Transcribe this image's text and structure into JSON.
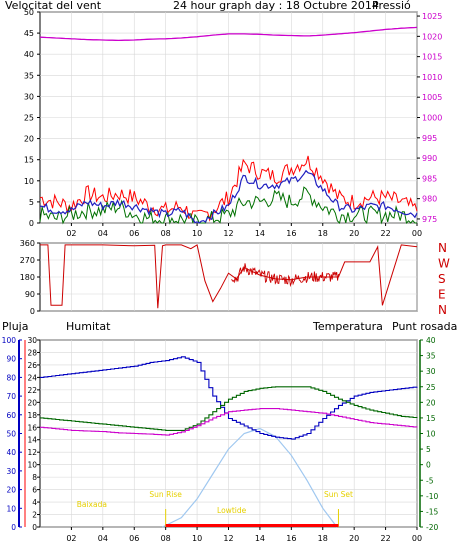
{
  "colors": {
    "wind": "#d40000",
    "wind_avg": "#2020c0",
    "wind_gust_fill": "#ff0000",
    "wind_low": "#007000",
    "pressure": "#cc00cc",
    "direction": "#cc0000",
    "humidity": "#0000c0",
    "temperature": "#006600",
    "dewpoint": "#cc00cc",
    "solar": "#a0c8f0",
    "rain": "#ff0000",
    "labels_yellow": "#e6d000",
    "axis": "#000000",
    "grid": "#d8d8d8"
  },
  "chart_data": [
    {
      "id": "wind-pressure",
      "type": "line",
      "title": "24 hour graph day : 18 Octubre 2014",
      "left_label": "Velocitat del vent",
      "right_label": "Pressió",
      "x_ticks": [
        "02",
        "04",
        "06",
        "08",
        "10",
        "12",
        "14",
        "16",
        "18",
        "20",
        "22",
        "00"
      ],
      "y_left_ticks": [
        "0",
        "5",
        "10",
        "15",
        "20",
        "25",
        "30",
        "35",
        "40",
        "45",
        "50"
      ],
      "y_left_range": [
        0,
        50
      ],
      "y_right_ticks": [
        "975",
        "980",
        "985",
        "990",
        "995",
        "1000",
        "1005",
        "1010",
        "1015",
        "1020",
        "1025"
      ],
      "y_right_range": [
        974,
        1026
      ],
      "x_hours": [
        0,
        1,
        2,
        3,
        4,
        5,
        6,
        7,
        8,
        9,
        10,
        11,
        12,
        13,
        14,
        15,
        16,
        17,
        18,
        19,
        20,
        21,
        22,
        23,
        24
      ],
      "series": [
        {
          "name": "gust",
          "values": [
            6,
            5,
            4,
            7,
            6,
            7,
            6,
            4,
            3,
            4,
            1,
            3,
            6,
            14,
            12,
            11,
            13,
            15,
            11,
            6,
            5,
            6,
            6,
            5,
            3
          ]
        },
        {
          "name": "average",
          "values": [
            4,
            3,
            3,
            5,
            4,
            5,
            4,
            3,
            2,
            3,
            0,
            2,
            4,
            11,
            9,
            9,
            10,
            12,
            8,
            4,
            3,
            4,
            4,
            3,
            2
          ]
        },
        {
          "name": "low",
          "values": [
            2,
            1,
            2,
            3,
            3,
            4,
            2,
            1,
            1,
            1,
            0,
            1,
            2,
            5,
            5,
            6,
            5,
            7,
            4,
            2,
            2,
            2,
            2,
            2,
            1
          ]
        },
        {
          "name": "pressure",
          "values": [
            1019.8,
            1019.6,
            1019.4,
            1019.2,
            1019.1,
            1019.0,
            1019.1,
            1019.3,
            1019.4,
            1019.6,
            1019.9,
            1020.3,
            1020.6,
            1020.6,
            1020.5,
            1020.3,
            1020.2,
            1020.1,
            1020.3,
            1020.6,
            1020.9,
            1021.3,
            1021.7,
            1022.0,
            1022.2
          ]
        }
      ]
    },
    {
      "id": "wind-direction",
      "type": "line",
      "y_left_ticks": [
        "0",
        "90",
        "180",
        "270",
        "360"
      ],
      "y_left_range": [
        0,
        360
      ],
      "y_right_ticks": [
        "N",
        "W",
        "S",
        "E",
        "N"
      ],
      "x_ticks": [
        "02",
        "04",
        "06",
        "08",
        "10",
        "12",
        "14",
        "16",
        "18",
        "20",
        "22",
        "00"
      ],
      "x_hours": [
        0,
        0.5,
        0.7,
        1.4,
        1.6,
        2,
        4,
        6,
        7.3,
        7.5,
        7.8,
        8,
        9,
        9.6,
        10,
        10.5,
        11,
        11.5,
        12,
        12.5,
        13,
        14,
        15,
        16,
        17,
        18,
        19,
        19.4,
        20,
        21,
        21.5,
        21.8,
        23,
        24
      ],
      "series": [
        {
          "name": "direction",
          "values": [
            350,
            350,
            30,
            30,
            350,
            350,
            350,
            345,
            348,
            15,
            345,
            350,
            350,
            330,
            350,
            160,
            50,
            120,
            200,
            170,
            230,
            190,
            170,
            165,
            180,
            180,
            180,
            260,
            260,
            260,
            340,
            30,
            350,
            340
          ]
        }
      ]
    },
    {
      "id": "temperature-humidity",
      "type": "line",
      "labels": {
        "rain": "Pluja",
        "humidity": "Humitat",
        "temperature": "Temperatura",
        "dewpoint": "Punt rosada"
      },
      "x_ticks": [
        "02",
        "04",
        "06",
        "08",
        "10",
        "12",
        "14",
        "16",
        "18",
        "20",
        "22",
        "00"
      ],
      "y_humidity_ticks": [
        "0",
        "10",
        "20",
        "30",
        "40",
        "50",
        "60",
        "70",
        "80",
        "90",
        "100"
      ],
      "y_humidity_range": [
        0,
        100
      ],
      "y_rain_ticks": [
        "0",
        "2",
        "4",
        "6",
        "8",
        "10",
        "12",
        "14",
        "16",
        "18",
        "20",
        "22",
        "24",
        "26",
        "28",
        "30"
      ],
      "y_rain_range": [
        0,
        30
      ],
      "y_temp_ticks": [
        "-20",
        "-15",
        "-10",
        "-5",
        "0",
        "5",
        "10",
        "15",
        "20",
        "25",
        "30",
        "35",
        "40"
      ],
      "y_temp_range": [
        -20,
        40
      ],
      "x_hours": [
        0,
        1,
        2,
        3,
        4,
        5,
        6,
        7,
        8,
        9,
        10,
        11,
        12,
        13,
        14,
        15,
        16,
        17,
        18,
        19,
        20,
        21,
        22,
        23,
        24
      ],
      "series": [
        {
          "name": "humidity",
          "values": [
            80,
            81,
            82,
            83,
            84,
            85,
            86,
            88,
            89,
            91,
            88,
            70,
            58,
            54,
            50,
            48,
            47,
            50,
            58,
            65,
            70,
            72,
            73,
            74,
            75
          ]
        },
        {
          "name": "temperature",
          "values": [
            15.0,
            14.5,
            14.0,
            13.5,
            13.0,
            12.5,
            12.0,
            11.5,
            11.0,
            11.0,
            13.0,
            17.0,
            21.0,
            23.5,
            24.5,
            25.0,
            25.0,
            25.0,
            23.5,
            21.0,
            19.0,
            17.5,
            16.5,
            15.5,
            15.0
          ]
        },
        {
          "name": "dewpoint",
          "values": [
            12.0,
            11.5,
            11.0,
            10.8,
            10.6,
            10.2,
            10.0,
            9.8,
            9.5,
            10.5,
            12.5,
            15.0,
            17.0,
            17.5,
            18.0,
            18.0,
            17.5,
            17.0,
            16.5,
            15.5,
            14.5,
            13.5,
            13.0,
            12.5,
            12.0
          ]
        },
        {
          "name": "solar",
          "x": [
            7.8,
            9,
            10,
            11,
            12,
            13,
            14,
            15,
            16,
            17,
            18,
            18.9
          ],
          "values": [
            0,
            1.5,
            4.5,
            8.5,
            12.5,
            15.0,
            15.8,
            14.5,
            11.5,
            7.5,
            3.0,
            0
          ]
        }
      ],
      "annotations": [
        {
          "text": "Baixada",
          "hour": 3.3
        },
        {
          "text": "Sun Rise",
          "hour": 8.0
        },
        {
          "text": "Lowtide",
          "hour": 12.2
        },
        {
          "text": "Sun Set",
          "hour": 19.0
        }
      ],
      "rain_total": 0
    }
  ]
}
